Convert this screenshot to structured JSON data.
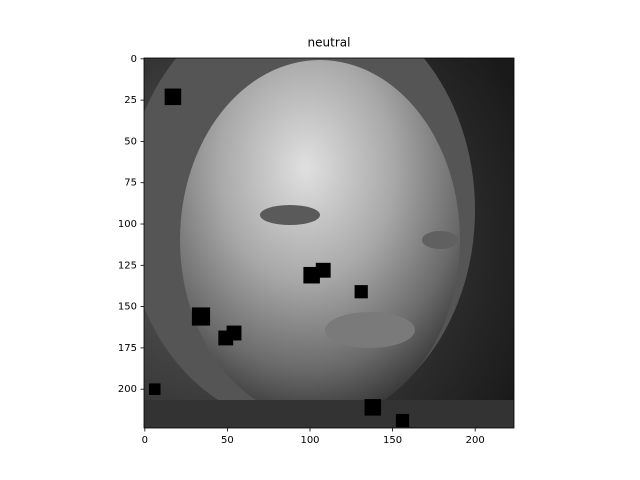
{
  "chart_data": {
    "type": "image",
    "title": "neutral",
    "xlim": [
      -0.5,
      223.5
    ],
    "ylim": [
      223.5,
      -0.5
    ],
    "xticks": [
      0,
      50,
      100,
      150,
      200
    ],
    "yticks": [
      0,
      25,
      50,
      75,
      100,
      125,
      150,
      175,
      200
    ],
    "patches": [
      {
        "x": 17,
        "y": 23,
        "size": 10
      },
      {
        "x": 6,
        "y": 200,
        "size": 7
      },
      {
        "x": 34,
        "y": 156,
        "size": 11
      },
      {
        "x": 54,
        "y": 166,
        "size": 9
      },
      {
        "x": 49,
        "y": 169,
        "size": 9
      },
      {
        "x": 101,
        "y": 131,
        "size": 10
      },
      {
        "x": 108,
        "y": 128,
        "size": 9
      },
      {
        "x": 131,
        "y": 141,
        "size": 8
      },
      {
        "x": 138,
        "y": 211,
        "size": 10
      },
      {
        "x": 156,
        "y": 219,
        "size": 8
      }
    ],
    "color": "#000000"
  }
}
